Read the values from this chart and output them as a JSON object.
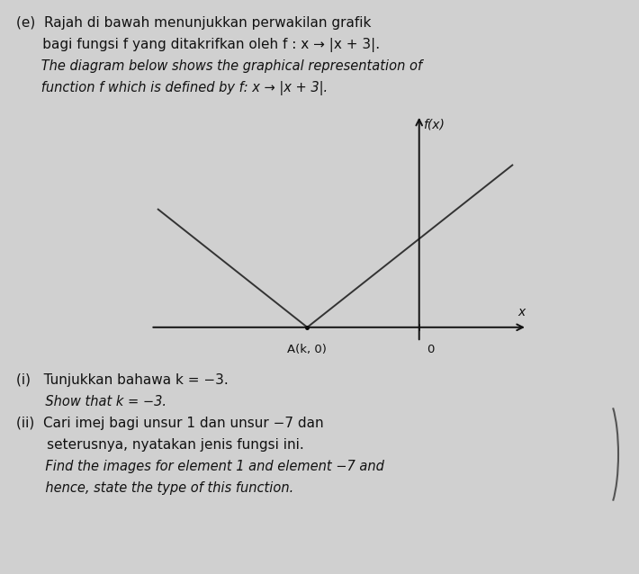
{
  "background_color": "#d0d0d0",
  "header_line1_malay": "(e)  Rajah di bawah menunjukkan perwakilan grafik",
  "header_line2_malay": "      bagi fungsi f yang ditakrifkan oleh f : x → |x + 3|.",
  "header_line3_eng": "      The diagram below shows the graphical representation of",
  "header_line4_eng": "      function f which is defined by f: x → |x + 3|.",
  "axis_label_x": "x",
  "axis_label_y": "f(x)",
  "vertex_label": "A(k, 0)",
  "origin_label": "0",
  "q_i_malay": "(i)   Tunjukkan bahawa k = −3.",
  "q_i_eng": "       Show that k = −3.",
  "q_ii_malay1": "(ii)  Cari imej bagi unsur 1 dan unsur −7 dan",
  "q_ii_malay2": "       seterusnya, nyatakan jenis fungsi ini.",
  "q_ii_eng1": "       Find the images for element 1 and element −7 and",
  "q_ii_eng2": "       hence, state the type of this function.",
  "text_color": "#111111",
  "graph_line_color": "#333333",
  "axis_color": "#111111",
  "font_size_main": 11,
  "font_size_italic": 10.5
}
